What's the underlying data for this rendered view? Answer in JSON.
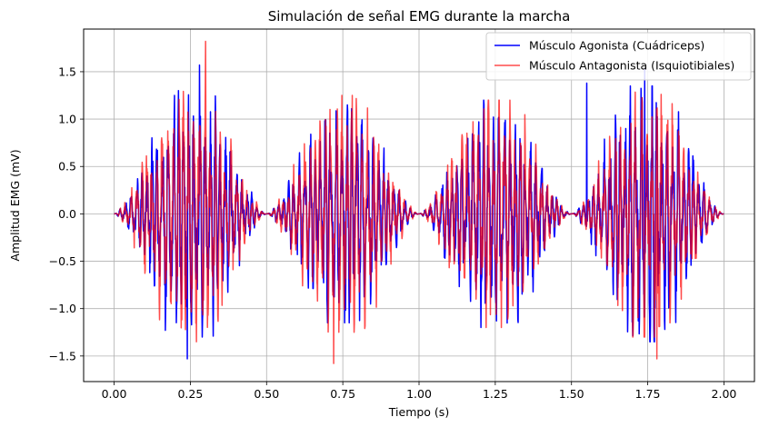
{
  "chart_data": {
    "type": "line",
    "title": "Simulación de señal EMG durante la marcha",
    "xlabel": "Tiempo (s)",
    "ylabel": "Amplitud EMG (mV)",
    "xlim": [
      -0.1,
      2.1
    ],
    "ylim": [
      -1.77,
      1.95
    ],
    "xticks": [
      0.0,
      0.25,
      0.5,
      0.75,
      1.0,
      1.25,
      1.5,
      1.75,
      2.0
    ],
    "xtick_labels": [
      "0.00",
      "0.25",
      "0.50",
      "0.75",
      "1.00",
      "1.25",
      "1.50",
      "1.75",
      "2.00"
    ],
    "yticks": [
      -1.5,
      -1.0,
      -0.5,
      0.0,
      0.5,
      1.0,
      1.5
    ],
    "ytick_labels": [
      "−1.5",
      "−1.0",
      "−0.5",
      "0.0",
      "0.5",
      "1.0",
      "1.5"
    ],
    "grid": true,
    "legend_position": "top-right",
    "x_range": [
      0.0,
      2.0
    ],
    "gait_cycles": 4,
    "series": [
      {
        "name": "Músculo Agonista (Cuádriceps)",
        "color": "#0000ff",
        "opacity": 1.0,
        "peak_envelope": [
          1.3,
          1.15,
          1.2,
          1.35
        ],
        "noted_extremes": [
          {
            "x": 0.24,
            "y": -1.53
          },
          {
            "x": 0.28,
            "y": 1.57
          },
          {
            "x": 1.55,
            "y": 1.38
          },
          {
            "x": 1.74,
            "y": 1.53
          }
        ]
      },
      {
        "name": "Músculo Antagonista (Isquiotibiales)",
        "color": "#ff0000",
        "opacity": 0.7,
        "peak_envelope": [
          1.35,
          1.25,
          1.2,
          1.3
        ],
        "noted_extremes": [
          {
            "x": 0.3,
            "y": 1.82
          },
          {
            "x": 0.72,
            "y": -1.58
          },
          {
            "x": 1.78,
            "y": -1.53
          }
        ]
      }
    ]
  }
}
